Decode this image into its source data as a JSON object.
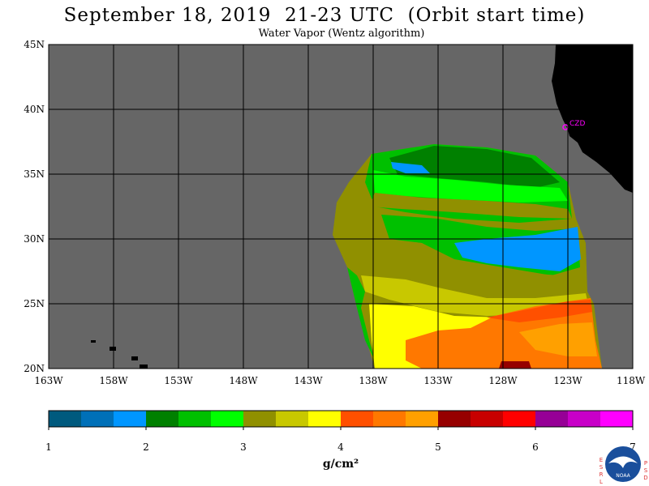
{
  "title": "September 18, 2019  21-23 UTC  (Orbit start time)",
  "subtitle": "Water Vapor (Wentz algorithm)",
  "map": {
    "lat_labels": [
      "45N",
      "40N",
      "35N",
      "30N",
      "25N",
      "20N"
    ],
    "lon_labels": [
      "163W",
      "158W",
      "153W",
      "148W",
      "143W",
      "138W",
      "133W",
      "128W",
      "123W",
      "118W"
    ],
    "lat_range": [
      20,
      45
    ],
    "lon_range": [
      -163,
      -118
    ],
    "station_label": "CZD",
    "colors": {
      "ocean_no_data": "#666666",
      "land": "#000000",
      "grid": "#000000",
      "station": "#ff00ff"
    }
  },
  "colorbar": {
    "tick_labels": [
      "1",
      "2",
      "3",
      "4",
      "5",
      "6",
      "7"
    ],
    "unit_label": "g/cm²",
    "colors": [
      "#005a7e",
      "#0070b8",
      "#0096ff",
      "#008000",
      "#00c000",
      "#00ff00",
      "#909000",
      "#c8c800",
      "#ffff00",
      "#ff5000",
      "#ff7800",
      "#ffa000",
      "#960000",
      "#c80000",
      "#ff0000",
      "#960096",
      "#c800c8",
      "#ff00ff"
    ]
  },
  "logo": {
    "left_letters": "ESRL",
    "right_letters": "PSD",
    "center_text": "NOAA"
  }
}
